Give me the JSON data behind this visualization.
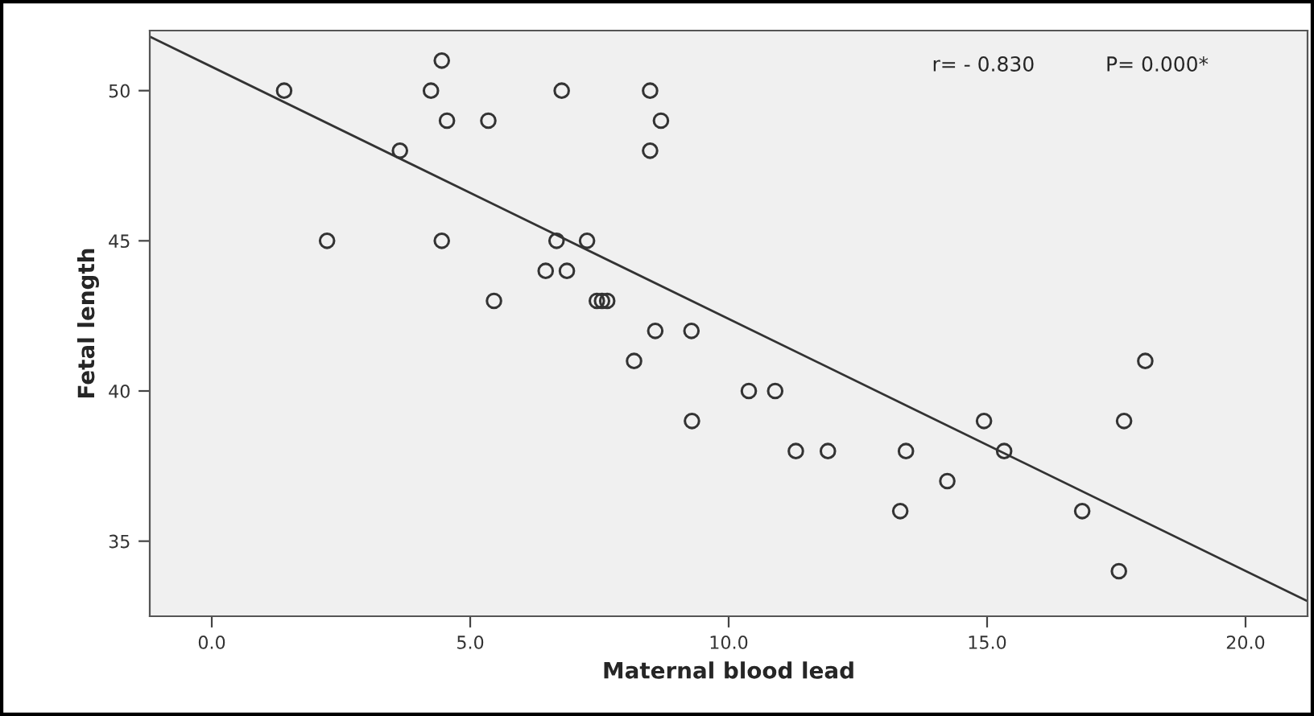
{
  "chart_data": {
    "type": "scatter",
    "xlabel": "Maternal blood lead",
    "ylabel": "Fetal length",
    "annotations": [
      "r= - 0.830",
      "P= 0.000*"
    ],
    "xlim": [
      -1.2,
      21.2
    ],
    "ylim": [
      32.5,
      52.0
    ],
    "xticks": [
      {
        "value": 0,
        "label": "0.0"
      },
      {
        "value": 5,
        "label": "5.0"
      },
      {
        "value": 10,
        "label": "10.0"
      },
      {
        "value": 15,
        "label": "15.0"
      },
      {
        "value": 20,
        "label": "20.0"
      }
    ],
    "yticks": [
      35,
      40,
      45,
      50
    ],
    "grid": false,
    "legend": false,
    "series": [
      {
        "marker": "circle",
        "color": "#333333",
        "x": [
          1.4,
          4.45,
          4.24,
          6.77,
          8.48,
          4.55,
          5.35,
          8.69,
          3.64,
          8.48,
          2.23,
          4.45,
          6.67,
          7.26,
          6.46,
          6.87,
          5.46,
          7.45,
          7.55,
          7.65,
          8.58,
          9.28,
          8.17,
          10.39,
          10.9,
          9.29,
          14.94,
          17.65,
          18.06,
          11.3,
          11.92,
          13.43,
          15.33,
          14.23,
          13.32,
          16.84,
          17.55
        ],
        "values": [
          50,
          51,
          50,
          50,
          50,
          49,
          49,
          49,
          48,
          48,
          45,
          45,
          45,
          45,
          44,
          44,
          43,
          43,
          43,
          43,
          42,
          42,
          41,
          40,
          40,
          39,
          39,
          39,
          41,
          38,
          38,
          38,
          38,
          37,
          36,
          36,
          34
        ]
      },
      {
        "type": "line",
        "marker": "none",
        "color": "#333333",
        "x": [
          -1.2,
          21.2
        ],
        "values": [
          51.8,
          33.0
        ]
      }
    ]
  }
}
